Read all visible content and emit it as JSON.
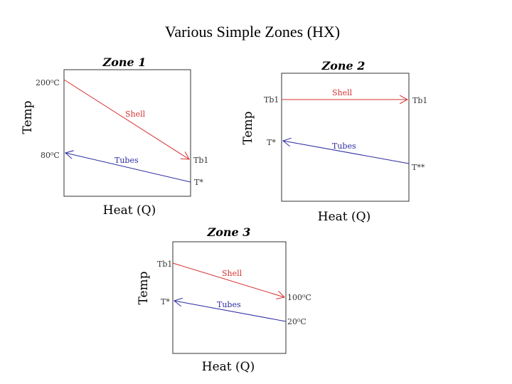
{
  "header": {
    "title": "Various Simple Zones (HX)"
  },
  "zones": [
    {
      "title": "Zone 1",
      "y_label": "Temp",
      "x_label": "Heat (Q)",
      "labels": {
        "shell": "Shell",
        "tubes": "Tubes",
        "shell_in": "200⁰C",
        "tubes_out": "80⁰C",
        "shell_out": "Tb1",
        "tubes_in": "T*"
      }
    },
    {
      "title": "Zone 2",
      "y_label": "Temp",
      "x_label": "Heat (Q)",
      "labels": {
        "shell": "Shell",
        "tubes": "Tubes",
        "shell_in": "Tb1",
        "tubes_out": "T*",
        "shell_out": "Tb1",
        "tubes_in": "T**"
      }
    },
    {
      "title": "Zone 3",
      "y_label": "Temp",
      "x_label": "Heat (Q)",
      "labels": {
        "shell": "Shell",
        "tubes": "Tubes",
        "shell_in": "Tb1",
        "tubes_out": "T*",
        "shell_out": "100⁰C",
        "tubes_in": "20⁰C"
      }
    }
  ]
}
